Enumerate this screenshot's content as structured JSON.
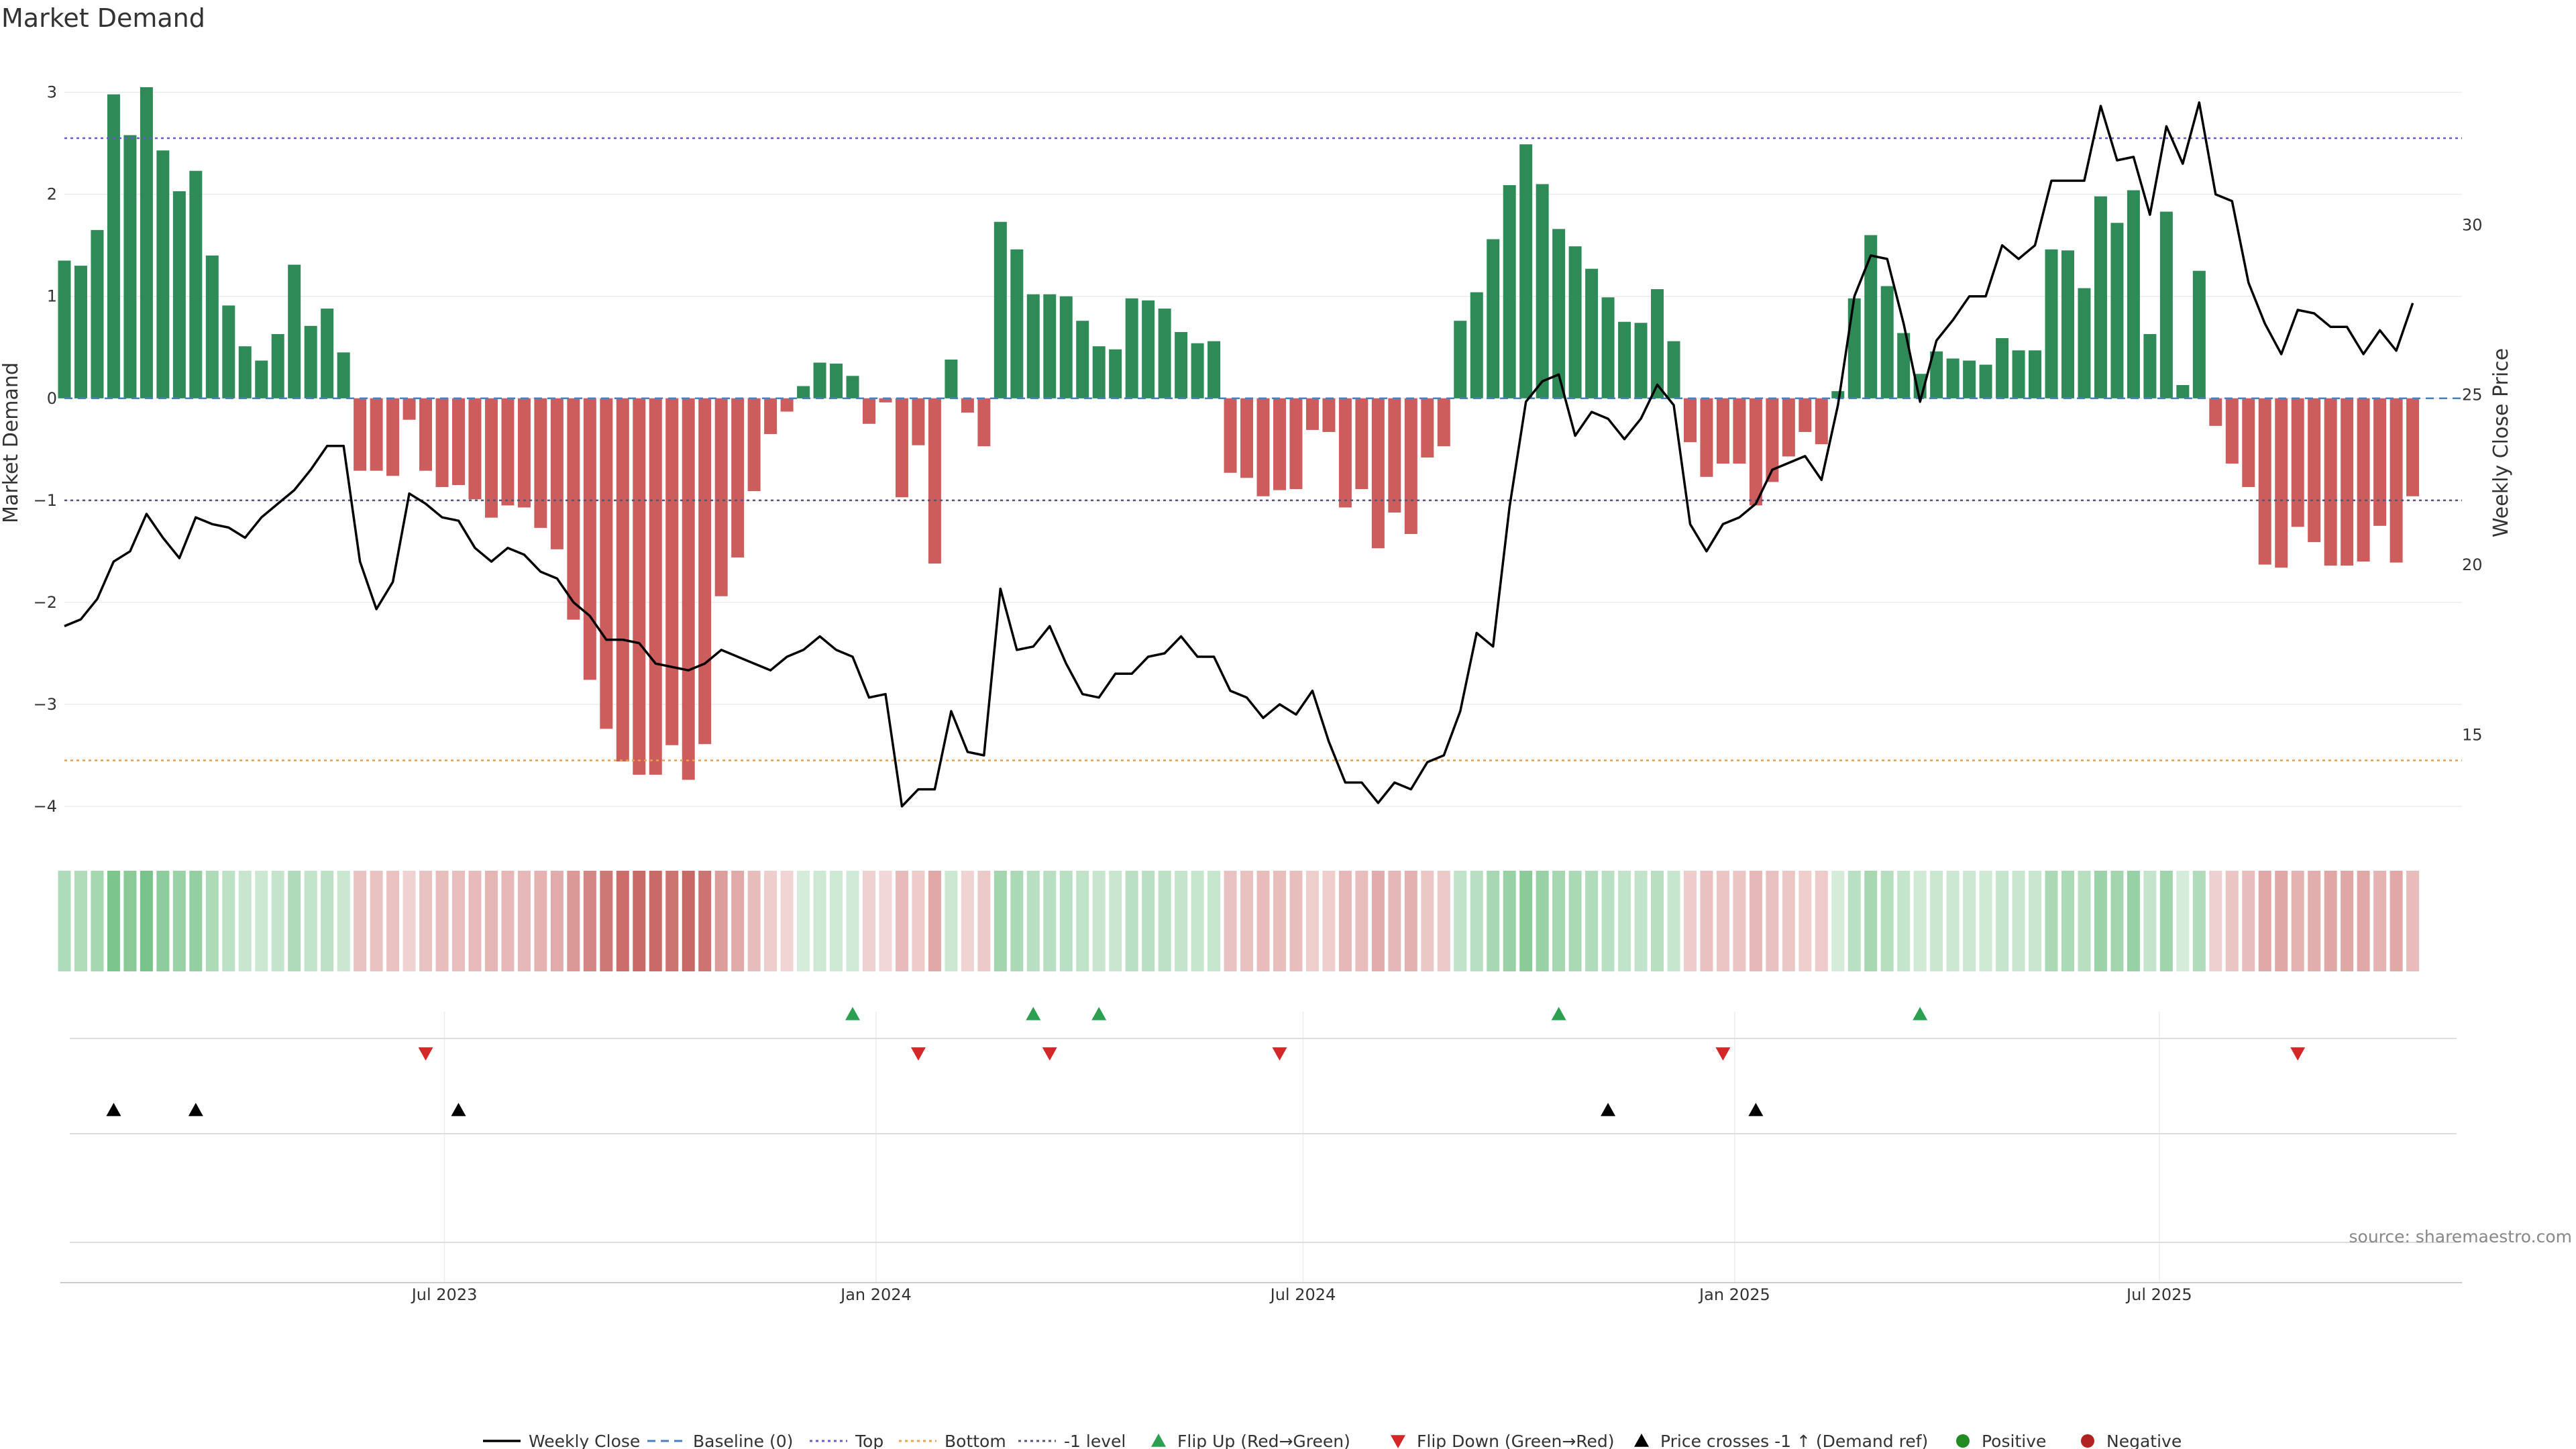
{
  "chart_data": {
    "type": "bar",
    "title": "Market Demand",
    "ylabel_left": "Market Demand",
    "ylabel_right": "Weekly Close Price",
    "source": "source: sharemaestro.com",
    "ylim_left": [
      -4.25,
      3.05
    ],
    "ylim_right": [
      12.15,
      34.05
    ],
    "yticks_left": [
      3,
      2,
      1,
      0,
      -1,
      -2,
      -3,
      -4
    ],
    "yticks_left_labels": [
      "3",
      "2",
      "1",
      "0",
      "−1",
      "−2",
      "−3",
      "−4"
    ],
    "yticks_right": [
      30,
      25,
      20,
      15
    ],
    "x_start": "2023-01-20",
    "x_end": "2025-11-07",
    "x_ticks": [
      {
        "date": "2023-07-01",
        "label": "Jul 2023"
      },
      {
        "date": "2024-01-01",
        "label": "Jan 2024"
      },
      {
        "date": "2024-07-01",
        "label": "Jul 2024"
      },
      {
        "date": "2025-01-01",
        "label": "Jan 2025"
      },
      {
        "date": "2025-07-01",
        "label": "Jul 2025"
      }
    ],
    "reference_lines": {
      "top": 2.55,
      "bottom": -3.55,
      "minus_one": -1.0,
      "baseline": 0
    },
    "colors": {
      "positive": "#2e8b57",
      "negative": "#cd5c5c",
      "price_line": "#000000",
      "top": "#6a5acd",
      "bottom": "#e8a04a",
      "baseline": "#4a7fc1",
      "flip_up": "#2ca050",
      "flip_down": "#d62728",
      "cross": "#000000",
      "legend_pos": "#228b22",
      "legend_neg": "#b22222"
    },
    "demand": [
      1.35,
      1.3,
      1.65,
      2.98,
      2.58,
      3.05,
      2.43,
      2.03,
      2.23,
      1.4,
      0.91,
      0.51,
      0.37,
      0.63,
      1.31,
      0.71,
      0.88,
      0.45,
      -0.71,
      -0.71,
      -0.76,
      -0.21,
      -0.71,
      -0.87,
      -0.85,
      -0.99,
      -1.17,
      -1.05,
      -1.07,
      -1.27,
      -1.48,
      -2.17,
      -2.76,
      -3.24,
      -3.56,
      -3.69,
      -3.69,
      -3.4,
      -3.74,
      -3.39,
      -1.94,
      -1.56,
      -0.91,
      -0.35,
      -0.13,
      0.12,
      0.35,
      0.34,
      0.22,
      -0.25,
      -0.04,
      -0.97,
      -0.46,
      -1.62,
      0.38,
      -0.14,
      -0.47,
      1.73,
      1.46,
      1.02,
      1.02,
      1.0,
      0.76,
      0.51,
      0.48,
      0.98,
      0.96,
      0.88,
      0.65,
      0.54,
      0.56,
      -0.73,
      -0.78,
      -0.96,
      -0.9,
      -0.89,
      -0.31,
      -0.33,
      -1.07,
      -0.89,
      -1.47,
      -1.12,
      -1.33,
      -0.58,
      -0.47,
      0.76,
      1.04,
      1.56,
      2.09,
      2.49,
      2.1,
      1.66,
      1.49,
      1.27,
      0.99,
      0.75,
      0.74,
      1.07,
      0.56,
      -0.43,
      -0.77,
      -0.64,
      -0.64,
      -1.05,
      -0.82,
      -0.57,
      -0.33,
      -0.45,
      0.07,
      0.98,
      1.6,
      1.1,
      0.64,
      0.24,
      0.46,
      0.39,
      0.37,
      0.33,
      0.59,
      0.47,
      0.47,
      1.46,
      1.45,
      1.08,
      1.98,
      1.72,
      2.04,
      0.63,
      1.83,
      0.13,
      1.25,
      -0.27,
      -0.64,
      -0.87,
      -1.63,
      -1.66,
      -1.26,
      -1.41,
      -1.64,
      -1.64,
      -1.6,
      -1.25,
      -1.61,
      -0.96
    ],
    "price": [
      18.2,
      18.4,
      19.0,
      20.1,
      20.4,
      21.5,
      20.8,
      20.2,
      21.4,
      21.2,
      21.1,
      20.8,
      21.4,
      21.8,
      22.2,
      22.8,
      23.5,
      23.5,
      20.1,
      18.7,
      19.5,
      22.1,
      21.8,
      21.4,
      21.3,
      20.5,
      20.1,
      20.5,
      20.3,
      19.8,
      19.6,
      18.9,
      18.5,
      17.8,
      17.8,
      17.7,
      17.1,
      17.0,
      16.9,
      17.1,
      17.5,
      17.3,
      17.1,
      16.9,
      17.3,
      17.5,
      17.9,
      17.5,
      17.3,
      16.1,
      16.2,
      12.9,
      13.4,
      13.4,
      15.7,
      14.5,
      14.4,
      19.3,
      17.5,
      17.6,
      18.2,
      17.1,
      16.2,
      16.1,
      16.8,
      16.8,
      17.3,
      17.4,
      17.9,
      17.3,
      17.3,
      16.3,
      16.1,
      15.5,
      15.9,
      15.6,
      16.3,
      14.8,
      13.6,
      13.6,
      13.0,
      13.6,
      13.4,
      14.2,
      14.4,
      15.7,
      18.0,
      17.6,
      21.7,
      24.8,
      25.4,
      25.6,
      23.8,
      24.5,
      24.3,
      23.7,
      24.3,
      25.3,
      24.7,
      21.2,
      20.4,
      21.2,
      21.4,
      21.8,
      22.8,
      23.0,
      23.2,
      22.5,
      24.7,
      27.9,
      29.1,
      29.0,
      27.1,
      24.8,
      26.6,
      27.2,
      27.9,
      27.9,
      29.4,
      29.0,
      29.4,
      31.3,
      31.3,
      31.3,
      33.5,
      31.9,
      32.0,
      30.3,
      32.9,
      31.8,
      33.6,
      30.9,
      30.7,
      28.3,
      27.1,
      26.2,
      27.5,
      27.4,
      27.0,
      27.0,
      26.2,
      26.9,
      26.3,
      27.7
    ],
    "flip_up": [
      "2023-12-22",
      "2024-03-08",
      "2024-04-05",
      "2024-10-18",
      "2025-03-21"
    ],
    "flip_down": [
      "2023-06-23",
      "2024-01-19",
      "2024-03-15",
      "2024-06-21",
      "2024-12-27",
      "2025-08-29"
    ],
    "price_crosses": [
      "2023-02-10",
      "2023-03-17",
      "2023-07-07",
      "2024-11-08",
      "2025-01-10"
    ],
    "legend": [
      {
        "label": "Weekly Close",
        "key": "price"
      },
      {
        "label": "Baseline (0)",
        "key": "baseline"
      },
      {
        "label": "Top",
        "key": "top"
      },
      {
        "label": "Bottom",
        "key": "bottom"
      },
      {
        "label": "-1 level",
        "key": "minus_one"
      },
      {
        "label": "Flip Up (Red→Green)",
        "key": "flip_up"
      },
      {
        "label": "Flip Down (Green→Red)",
        "key": "flip_down"
      },
      {
        "label": "Price crosses -1 ↑ (Demand ref)",
        "key": "cross"
      },
      {
        "label": "Positive",
        "key": "positive"
      },
      {
        "label": "Negative",
        "key": "negative"
      }
    ]
  }
}
